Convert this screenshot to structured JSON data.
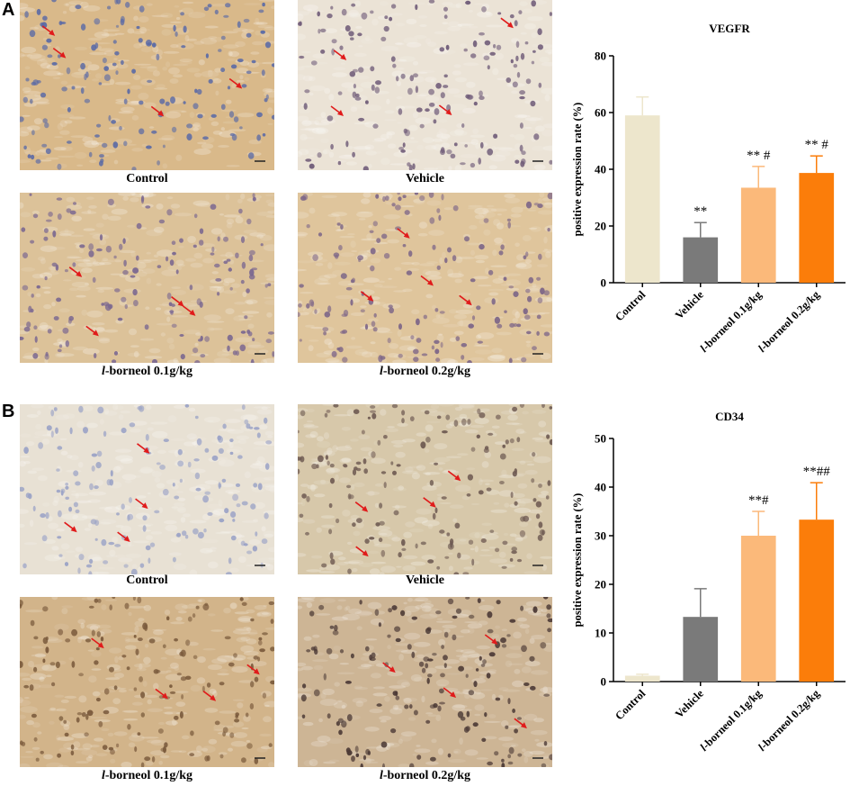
{
  "panels": [
    {
      "letter": "A",
      "images": [
        {
          "caption_prefix": "",
          "caption": "Control",
          "bg": "#d9b98a",
          "fg": "#5a6aa6"
        },
        {
          "caption_prefix": "",
          "caption": "Vehicle",
          "bg": "#ebe3d6",
          "fg": "#6f5b78"
        },
        {
          "caption_prefix": "l",
          "caption": "-borneol 0.1g/kg",
          "bg": "#dcc299",
          "fg": "#7a6790"
        },
        {
          "caption_prefix": "l",
          "caption": "-borneol 0.2g/kg",
          "bg": "#dfc59c",
          "fg": "#7d6688"
        }
      ]
    },
    {
      "letter": "B",
      "images": [
        {
          "caption_prefix": "",
          "caption": "Control",
          "bg": "#e8e1d4",
          "fg": "#9aa2c6"
        },
        {
          "caption_prefix": "",
          "caption": "Vehicle",
          "bg": "#d7c8aa",
          "fg": "#6e5a52"
        },
        {
          "caption_prefix": "l",
          "caption": "-borneol 0.1g/kg",
          "bg": "#d2b48a",
          "fg": "#7a5a3c"
        },
        {
          "caption_prefix": "l",
          "caption": "-borneol 0.2g/kg",
          "bg": "#cdb595",
          "fg": "#4c3a36"
        }
      ]
    }
  ],
  "chart_data": [
    {
      "type": "bar",
      "title": "VEGFR",
      "ylabel": "positive expression rate (%)",
      "xlabel": "",
      "categories": [
        "Control",
        "Vehicle",
        "l-borneol 0.1g/kg",
        "l-borneol 0.2g/kg"
      ],
      "category_italic_prefix": [
        "",
        "",
        "l",
        "l"
      ],
      "category_rest": [
        "Control",
        "Vehicle",
        "-borneol 0.1g/kg",
        "-borneol 0.2g/kg"
      ],
      "values": [
        59,
        16,
        33.5,
        38.7
      ],
      "errors": [
        6.5,
        5.2,
        7.5,
        6
      ],
      "annotations": [
        "",
        "**",
        "** #",
        "** #"
      ],
      "colors": [
        "#ede6cc",
        "#7a7a7a",
        "#fbb97a",
        "#fb7d0a"
      ],
      "ylim": [
        0,
        80
      ],
      "yticks": [
        0,
        20,
        40,
        60,
        80
      ],
      "grid": false
    },
    {
      "type": "bar",
      "title": "CD34",
      "ylabel": "positive expression rate (%)",
      "xlabel": "",
      "categories": [
        "Control",
        "Vehicle",
        "l-borneol 0.1g/kg",
        "l-borneol 0.2g/kg"
      ],
      "category_italic_prefix": [
        "",
        "",
        "l",
        "l"
      ],
      "category_rest": [
        "Control",
        "Vehicle",
        "-borneol 0.1g/kg",
        "-borneol 0.2g/kg"
      ],
      "values": [
        1.2,
        13.3,
        30,
        33.3
      ],
      "errors": [
        0.3,
        5.8,
        5,
        7.6
      ],
      "annotations": [
        "",
        "",
        "**#",
        "**##"
      ],
      "colors": [
        "#ede6cc",
        "#7a7a7a",
        "#fbb97a",
        "#fb7d0a"
      ],
      "ylim": [
        0,
        50
      ],
      "yticks": [
        0,
        10,
        20,
        30,
        40,
        50
      ],
      "grid": false
    }
  ]
}
